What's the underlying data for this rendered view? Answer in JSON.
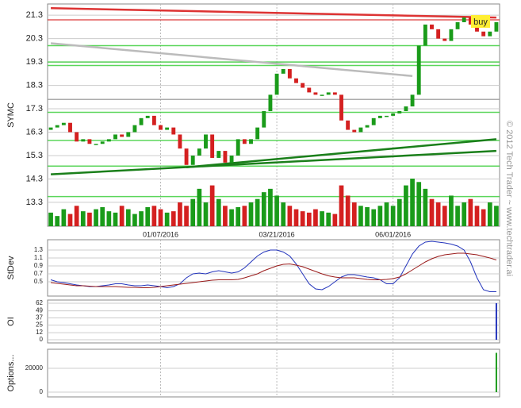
{
  "watermark": "© 2012 Tech Trader ~ www.techtrader.ai",
  "chart_data": [
    {
      "type": "candlestick",
      "ylabel": "SYMC",
      "categories": [
        null,
        null,
        null,
        null,
        null,
        null,
        null,
        null,
        null,
        null,
        null,
        null,
        null,
        null,
        null,
        null,
        null,
        "01/07/2016",
        null,
        null,
        null,
        null,
        null,
        null,
        null,
        null,
        null,
        null,
        null,
        null,
        null,
        null,
        null,
        null,
        null,
        "03/21/2016",
        null,
        null,
        null,
        null,
        null,
        null,
        null,
        null,
        null,
        null,
        null,
        null,
        null,
        null,
        null,
        null,
        null,
        "06/01/2016",
        null,
        null,
        null,
        null,
        null,
        null,
        null,
        null,
        null,
        null,
        null,
        null,
        null,
        null,
        null,
        null
      ],
      "open": [
        16.4,
        16.5,
        16.6,
        16.7,
        16.3,
        15.9,
        16.0,
        15.8,
        15.8,
        15.9,
        16.0,
        16.2,
        16.1,
        16.3,
        16.6,
        16.9,
        17.0,
        16.6,
        16.4,
        16.5,
        16.2,
        15.6,
        14.9,
        15.3,
        15.6,
        16.2,
        15.2,
        15.5,
        15.0,
        15.3,
        16.0,
        15.8,
        16.0,
        16.5,
        17.2,
        17.9,
        18.8,
        19.0,
        18.6,
        18.4,
        18.2,
        18.0,
        17.9,
        17.9,
        18.0,
        17.9,
        16.8,
        16.4,
        16.3,
        16.5,
        16.6,
        16.9,
        17.0,
        17.0,
        17.1,
        17.2,
        17.4,
        17.9,
        20.0,
        20.9,
        20.7,
        20.3,
        20.2,
        20.7,
        21.0,
        21.2,
        20.9,
        20.6,
        20.4,
        20.6
      ],
      "close": [
        16.5,
        16.6,
        16.7,
        16.3,
        15.9,
        16.0,
        15.8,
        15.8,
        15.9,
        16.0,
        16.2,
        16.1,
        16.3,
        16.6,
        16.9,
        17.0,
        16.6,
        16.4,
        16.5,
        16.2,
        15.6,
        14.9,
        15.3,
        15.6,
        16.2,
        15.2,
        15.5,
        15.0,
        15.3,
        16.0,
        15.8,
        16.0,
        16.5,
        17.2,
        17.9,
        18.8,
        19.0,
        18.6,
        18.4,
        18.2,
        18.0,
        17.9,
        17.9,
        18.0,
        17.9,
        16.8,
        16.4,
        16.3,
        16.5,
        16.6,
        16.9,
        17.0,
        17.0,
        17.1,
        17.2,
        17.4,
        17.9,
        20.0,
        20.9,
        20.7,
        20.3,
        20.2,
        20.7,
        21.0,
        21.2,
        20.9,
        20.6,
        20.4,
        20.6,
        21.0
      ],
      "volume": [
        20,
        15,
        25,
        18,
        30,
        22,
        20,
        25,
        28,
        22,
        20,
        30,
        25,
        18,
        22,
        28,
        30,
        25,
        20,
        22,
        35,
        30,
        40,
        55,
        35,
        60,
        40,
        30,
        25,
        28,
        30,
        35,
        40,
        50,
        55,
        45,
        35,
        30,
        25,
        22,
        20,
        25,
        22,
        20,
        18,
        60,
        45,
        35,
        30,
        28,
        25,
        30,
        35,
        30,
        40,
        60,
        70,
        65,
        55,
        40,
        35,
        30,
        45,
        30,
        35,
        40,
        30,
        25,
        35,
        30
      ],
      "up_color": "#1a9b1a",
      "down_color": "#d42020",
      "ylim": [
        12.28,
        21.78
      ],
      "yticks": [
        13.3,
        14.3,
        15.3,
        16.3,
        17.3,
        18.3,
        19.3,
        20.3,
        21.3
      ],
      "levels": [
        {
          "value": 21.1,
          "color": "#d33"
        },
        {
          "value": 20.0,
          "color": "#3c3"
        },
        {
          "value": 19.3,
          "color": "#3c3"
        },
        {
          "value": 19.15,
          "color": "#3c3"
        },
        {
          "value": 17.7,
          "color": "#999"
        },
        {
          "value": 17.15,
          "color": "#3c3"
        },
        {
          "value": 15.95,
          "color": "#3c3"
        },
        {
          "value": 14.85,
          "color": "#3c3"
        },
        {
          "value": 13.55,
          "color": "#3c3"
        }
      ],
      "trendlines": [
        {
          "x": [
            0,
            69
          ],
          "y": [
            14.5,
            15.5
          ],
          "color": "#1a7f1a"
        },
        {
          "x": [
            21,
            69
          ],
          "y": [
            14.8,
            16.0
          ],
          "color": "#1a7f1a"
        },
        {
          "x": [
            0,
            56
          ],
          "y": [
            20.1,
            18.7
          ],
          "color": "#bbb"
        },
        {
          "x": [
            0,
            69
          ],
          "y": [
            21.6,
            21.2
          ],
          "color": "#d33"
        }
      ],
      "annotations": [
        "buy"
      ]
    },
    {
      "type": "line",
      "ylabel": "StDev",
      "ylim": [
        0.14,
        1.56
      ],
      "yticks": [
        0.5,
        0.7,
        0.9,
        1.1,
        1.3
      ],
      "series": [
        {
          "color": "#2233bb",
          "values": [
            0.55,
            0.5,
            0.48,
            0.45,
            0.42,
            0.4,
            0.38,
            0.38,
            0.4,
            0.42,
            0.45,
            0.45,
            0.42,
            0.4,
            0.4,
            0.42,
            0.4,
            0.38,
            0.35,
            0.38,
            0.45,
            0.6,
            0.7,
            0.72,
            0.7,
            0.75,
            0.78,
            0.75,
            0.72,
            0.75,
            0.85,
            1.0,
            1.15,
            1.25,
            1.3,
            1.3,
            1.25,
            1.15,
            0.95,
            0.7,
            0.45,
            0.32,
            0.3,
            0.38,
            0.5,
            0.62,
            0.68,
            0.68,
            0.65,
            0.62,
            0.6,
            0.55,
            0.45,
            0.45,
            0.6,
            0.9,
            1.2,
            1.4,
            1.5,
            1.52,
            1.5,
            1.48,
            1.45,
            1.4,
            1.3,
            1.0,
            0.6,
            0.3,
            0.25,
            0.25
          ]
        },
        {
          "color": "#991a1a",
          "values": [
            0.48,
            0.46,
            0.44,
            0.42,
            0.4,
            0.4,
            0.39,
            0.38,
            0.38,
            0.38,
            0.38,
            0.37,
            0.36,
            0.36,
            0.35,
            0.35,
            0.36,
            0.38,
            0.4,
            0.42,
            0.44,
            0.46,
            0.48,
            0.5,
            0.52,
            0.54,
            0.55,
            0.55,
            0.55,
            0.56,
            0.6,
            0.65,
            0.7,
            0.78,
            0.84,
            0.9,
            0.94,
            0.95,
            0.92,
            0.88,
            0.82,
            0.76,
            0.7,
            0.65,
            0.62,
            0.6,
            0.6,
            0.6,
            0.58,
            0.56,
            0.55,
            0.55,
            0.56,
            0.58,
            0.62,
            0.7,
            0.8,
            0.9,
            1.0,
            1.08,
            1.14,
            1.18,
            1.2,
            1.22,
            1.22,
            1.2,
            1.18,
            1.14,
            1.1,
            1.05
          ]
        }
      ]
    },
    {
      "type": "bar",
      "ylabel": "OI",
      "ylim": [
        -5.3,
        67.3
      ],
      "yticks": [
        0,
        12,
        25,
        37,
        49,
        62
      ],
      "color": "#2233bb",
      "values": [
        0,
        0,
        0,
        0,
        0,
        0,
        0,
        0,
        0,
        0,
        0,
        0,
        0,
        0,
        0,
        0,
        0,
        0,
        0,
        0,
        0,
        0,
        0,
        0,
        0,
        0,
        0,
        0,
        0,
        0,
        0,
        0,
        0,
        0,
        0,
        0,
        0,
        0,
        0,
        0,
        0,
        0,
        0,
        0,
        0,
        0,
        0,
        0,
        0,
        0,
        0,
        0,
        0,
        0,
        0,
        0,
        0,
        0,
        0,
        0,
        0,
        0,
        0,
        0,
        0,
        0,
        0,
        0,
        0,
        62
      ]
    },
    {
      "type": "bar",
      "ylabel": "Options...",
      "ylim": [
        -4000,
        36000
      ],
      "yticks": [
        0,
        20000
      ],
      "color": "#1a9b1a",
      "values": [
        0,
        0,
        0,
        0,
        0,
        0,
        0,
        0,
        0,
        0,
        0,
        0,
        0,
        0,
        0,
        0,
        0,
        0,
        0,
        0,
        0,
        0,
        0,
        0,
        0,
        0,
        0,
        0,
        0,
        0,
        0,
        0,
        0,
        0,
        0,
        0,
        0,
        0,
        0,
        0,
        0,
        0,
        0,
        0,
        0,
        0,
        0,
        0,
        0,
        0,
        0,
        0,
        0,
        0,
        0,
        0,
        0,
        0,
        0,
        0,
        0,
        0,
        0,
        0,
        0,
        0,
        0,
        0,
        0,
        33000
      ]
    }
  ]
}
